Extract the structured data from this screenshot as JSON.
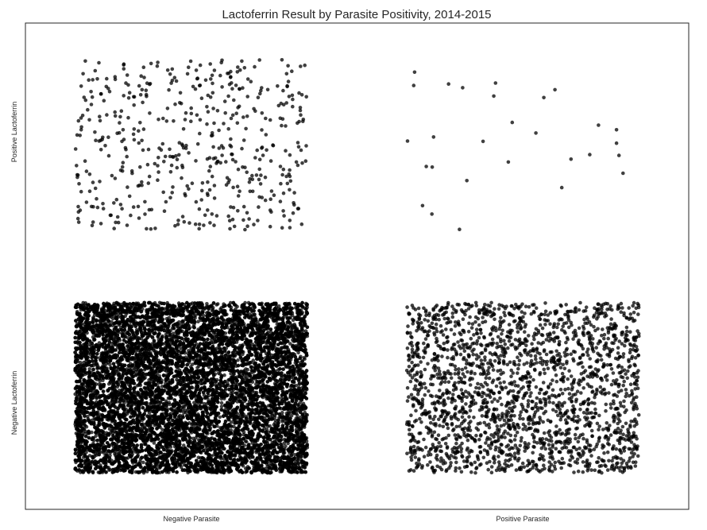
{
  "chart_data": {
    "type": "scatter",
    "title": "Lactoferrin Result by Parasite Positivity, 2014-2015",
    "xlabel": "",
    "ylabel": "",
    "x_categories": [
      "Negative Parasite",
      "Positive Parasite"
    ],
    "y_categories": [
      "Negative Lactoferrin",
      "Positive Lactoferrin"
    ],
    "jitter": "uniform ±0.35 around each category",
    "grid": false,
    "marker_color": "#000000",
    "marker_alpha": 0.75,
    "cells": [
      {
        "parasite": "Negative Parasite",
        "lactoferrin": "Positive Lactoferrin",
        "approx_points": 500
      },
      {
        "parasite": "Positive Parasite",
        "lactoferrin": "Positive Lactoferrin",
        "approx_points": 28
      },
      {
        "parasite": "Negative Parasite",
        "lactoferrin": "Negative Lactoferrin",
        "approx_points": 12000
      },
      {
        "parasite": "Positive Parasite",
        "lactoferrin": "Negative Lactoferrin",
        "approx_points": 2300
      }
    ]
  }
}
